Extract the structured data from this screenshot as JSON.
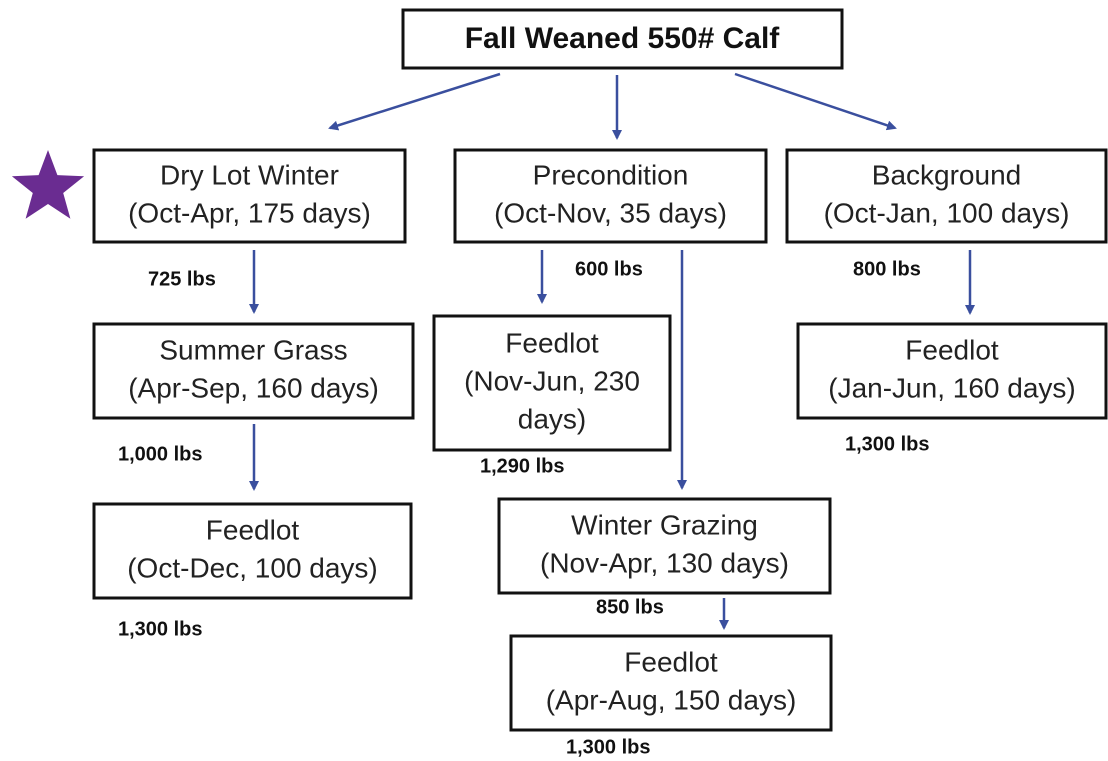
{
  "title": "Fall Weaned 550# Calf",
  "nodes": [
    {
      "lines": [
        "Dry Lot Winter",
        "(Oct-Apr, 175 days)"
      ]
    },
    {
      "lines": [
        "Precondition",
        "(Oct-Nov, 35 days)"
      ]
    },
    {
      "lines": [
        "Background",
        "(Oct-Jan, 100 days)"
      ]
    },
    {
      "lines": [
        "Summer Grass",
        "(Apr-Sep, 160 days)"
      ]
    },
    {
      "lines": [
        "Feedlot",
        "(Nov-Jun, 230",
        "days)"
      ]
    },
    {
      "lines": [
        "Feedlot",
        "(Jan-Jun, 160 days)"
      ]
    },
    {
      "lines": [
        "Feedlot",
        "(Oct-Dec, 100 days)"
      ]
    },
    {
      "lines": [
        "Winter Grazing",
        "(Nov-Apr, 130 days)"
      ]
    },
    {
      "lines": [
        "Feedlot",
        "(Apr-Aug, 150 days)"
      ]
    }
  ],
  "weights": [
    "725 lbs",
    "600 lbs",
    "800 lbs",
    "1,000 lbs",
    "1,290 lbs",
    "1,300 lbs",
    "1,300 lbs",
    "850 lbs",
    "1,300 lbs"
  ]
}
